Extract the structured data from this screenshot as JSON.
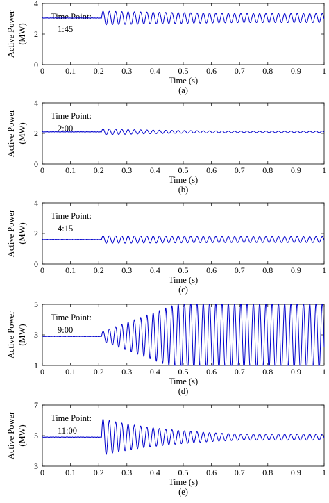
{
  "line_color": "#0000cc",
  "chart_data": [
    {
      "type": "line",
      "panel_label": "(a)",
      "annotation": [
        "Time Point:",
        "1:45"
      ],
      "xlabel": "Time (s)",
      "ylabel": [
        "Active Power",
        "(MW)"
      ],
      "xlim": [
        0,
        1
      ],
      "ylim": [
        0,
        4
      ],
      "xticks": [
        "0",
        "0.1",
        "0.2",
        "0.3",
        "0.4",
        "0.5",
        "0.6",
        "0.7",
        "0.8",
        "0.9",
        "1"
      ],
      "yticks": [
        "0",
        "2",
        "4"
      ],
      "signal": {
        "steady": 3.05,
        "disturbance_time": 0.21,
        "initial_amplitude": 0.45,
        "final_amplitude": 0.3,
        "freq_hz": 45,
        "growth": "decay"
      }
    },
    {
      "type": "line",
      "panel_label": "(b)",
      "annotation": [
        "Time Point:",
        "2:00"
      ],
      "xlabel": "Time (s)",
      "ylabel": [
        "Active Power",
        "(MW)"
      ],
      "xlim": [
        0,
        1
      ],
      "ylim": [
        0,
        4
      ],
      "xticks": [
        "0",
        "0.1",
        "0.2",
        "0.3",
        "0.4",
        "0.5",
        "0.6",
        "0.7",
        "0.8",
        "0.9",
        "1"
      ],
      "yticks": [
        "0",
        "2",
        "4"
      ],
      "signal": {
        "steady": 2.1,
        "disturbance_time": 0.21,
        "initial_amplitude": 0.2,
        "final_amplitude": 0.05,
        "freq_hz": 45,
        "growth": "decay"
      }
    },
    {
      "type": "line",
      "panel_label": "(c)",
      "annotation": [
        "Time Point:",
        "4:15"
      ],
      "xlabel": "Time (s)",
      "ylabel": [
        "Active Power",
        "(MW)"
      ],
      "xlim": [
        0,
        1
      ],
      "ylim": [
        0,
        4
      ],
      "xticks": [
        "0",
        "0.1",
        "0.2",
        "0.3",
        "0.4",
        "0.5",
        "0.6",
        "0.7",
        "0.8",
        "0.9",
        "1"
      ],
      "yticks": [
        "0",
        "2",
        "4"
      ],
      "signal": {
        "steady": 1.6,
        "disturbance_time": 0.21,
        "initial_amplitude": 0.25,
        "final_amplitude": 0.2,
        "freq_hz": 45,
        "growth": "decay"
      }
    },
    {
      "type": "line",
      "panel_label": "(d)",
      "annotation": [
        "Time Point:",
        "9:00"
      ],
      "xlabel": "Time (s)",
      "ylabel": [
        "Active Power",
        "(MW)"
      ],
      "xlim": [
        0,
        1
      ],
      "ylim": [
        1,
        5
      ],
      "xticks": [
        "0",
        "0.1",
        "0.2",
        "0.3",
        "0.4",
        "0.5",
        "0.6",
        "0.7",
        "0.8",
        "0.9",
        "1"
      ],
      "yticks": [
        "1",
        "3",
        "5"
      ],
      "signal": {
        "steady": 2.9,
        "disturbance_time": 0.21,
        "initial_amplitude": 0.3,
        "final_amplitude": 2.2,
        "freq_hz": 45,
        "growth": "grow",
        "clip": [
          1,
          5
        ]
      }
    },
    {
      "type": "line",
      "panel_label": "(e)",
      "annotation": [
        "Time Point:",
        "11:00"
      ],
      "xlabel": "Time (s)",
      "ylabel": [
        "Active Power",
        "(MW)"
      ],
      "xlim": [
        0,
        1
      ],
      "ylim": [
        3,
        7
      ],
      "xticks": [
        "0",
        "0.1",
        "0.2",
        "0.3",
        "0.4",
        "0.5",
        "0.6",
        "0.7",
        "0.8",
        "0.9",
        "1"
      ],
      "yticks": [
        "3",
        "5",
        "7"
      ],
      "signal": {
        "steady": 4.9,
        "disturbance_time": 0.21,
        "initial_amplitude": 1.2,
        "final_amplitude": 0.2,
        "freq_hz": 45,
        "growth": "decay"
      }
    }
  ]
}
